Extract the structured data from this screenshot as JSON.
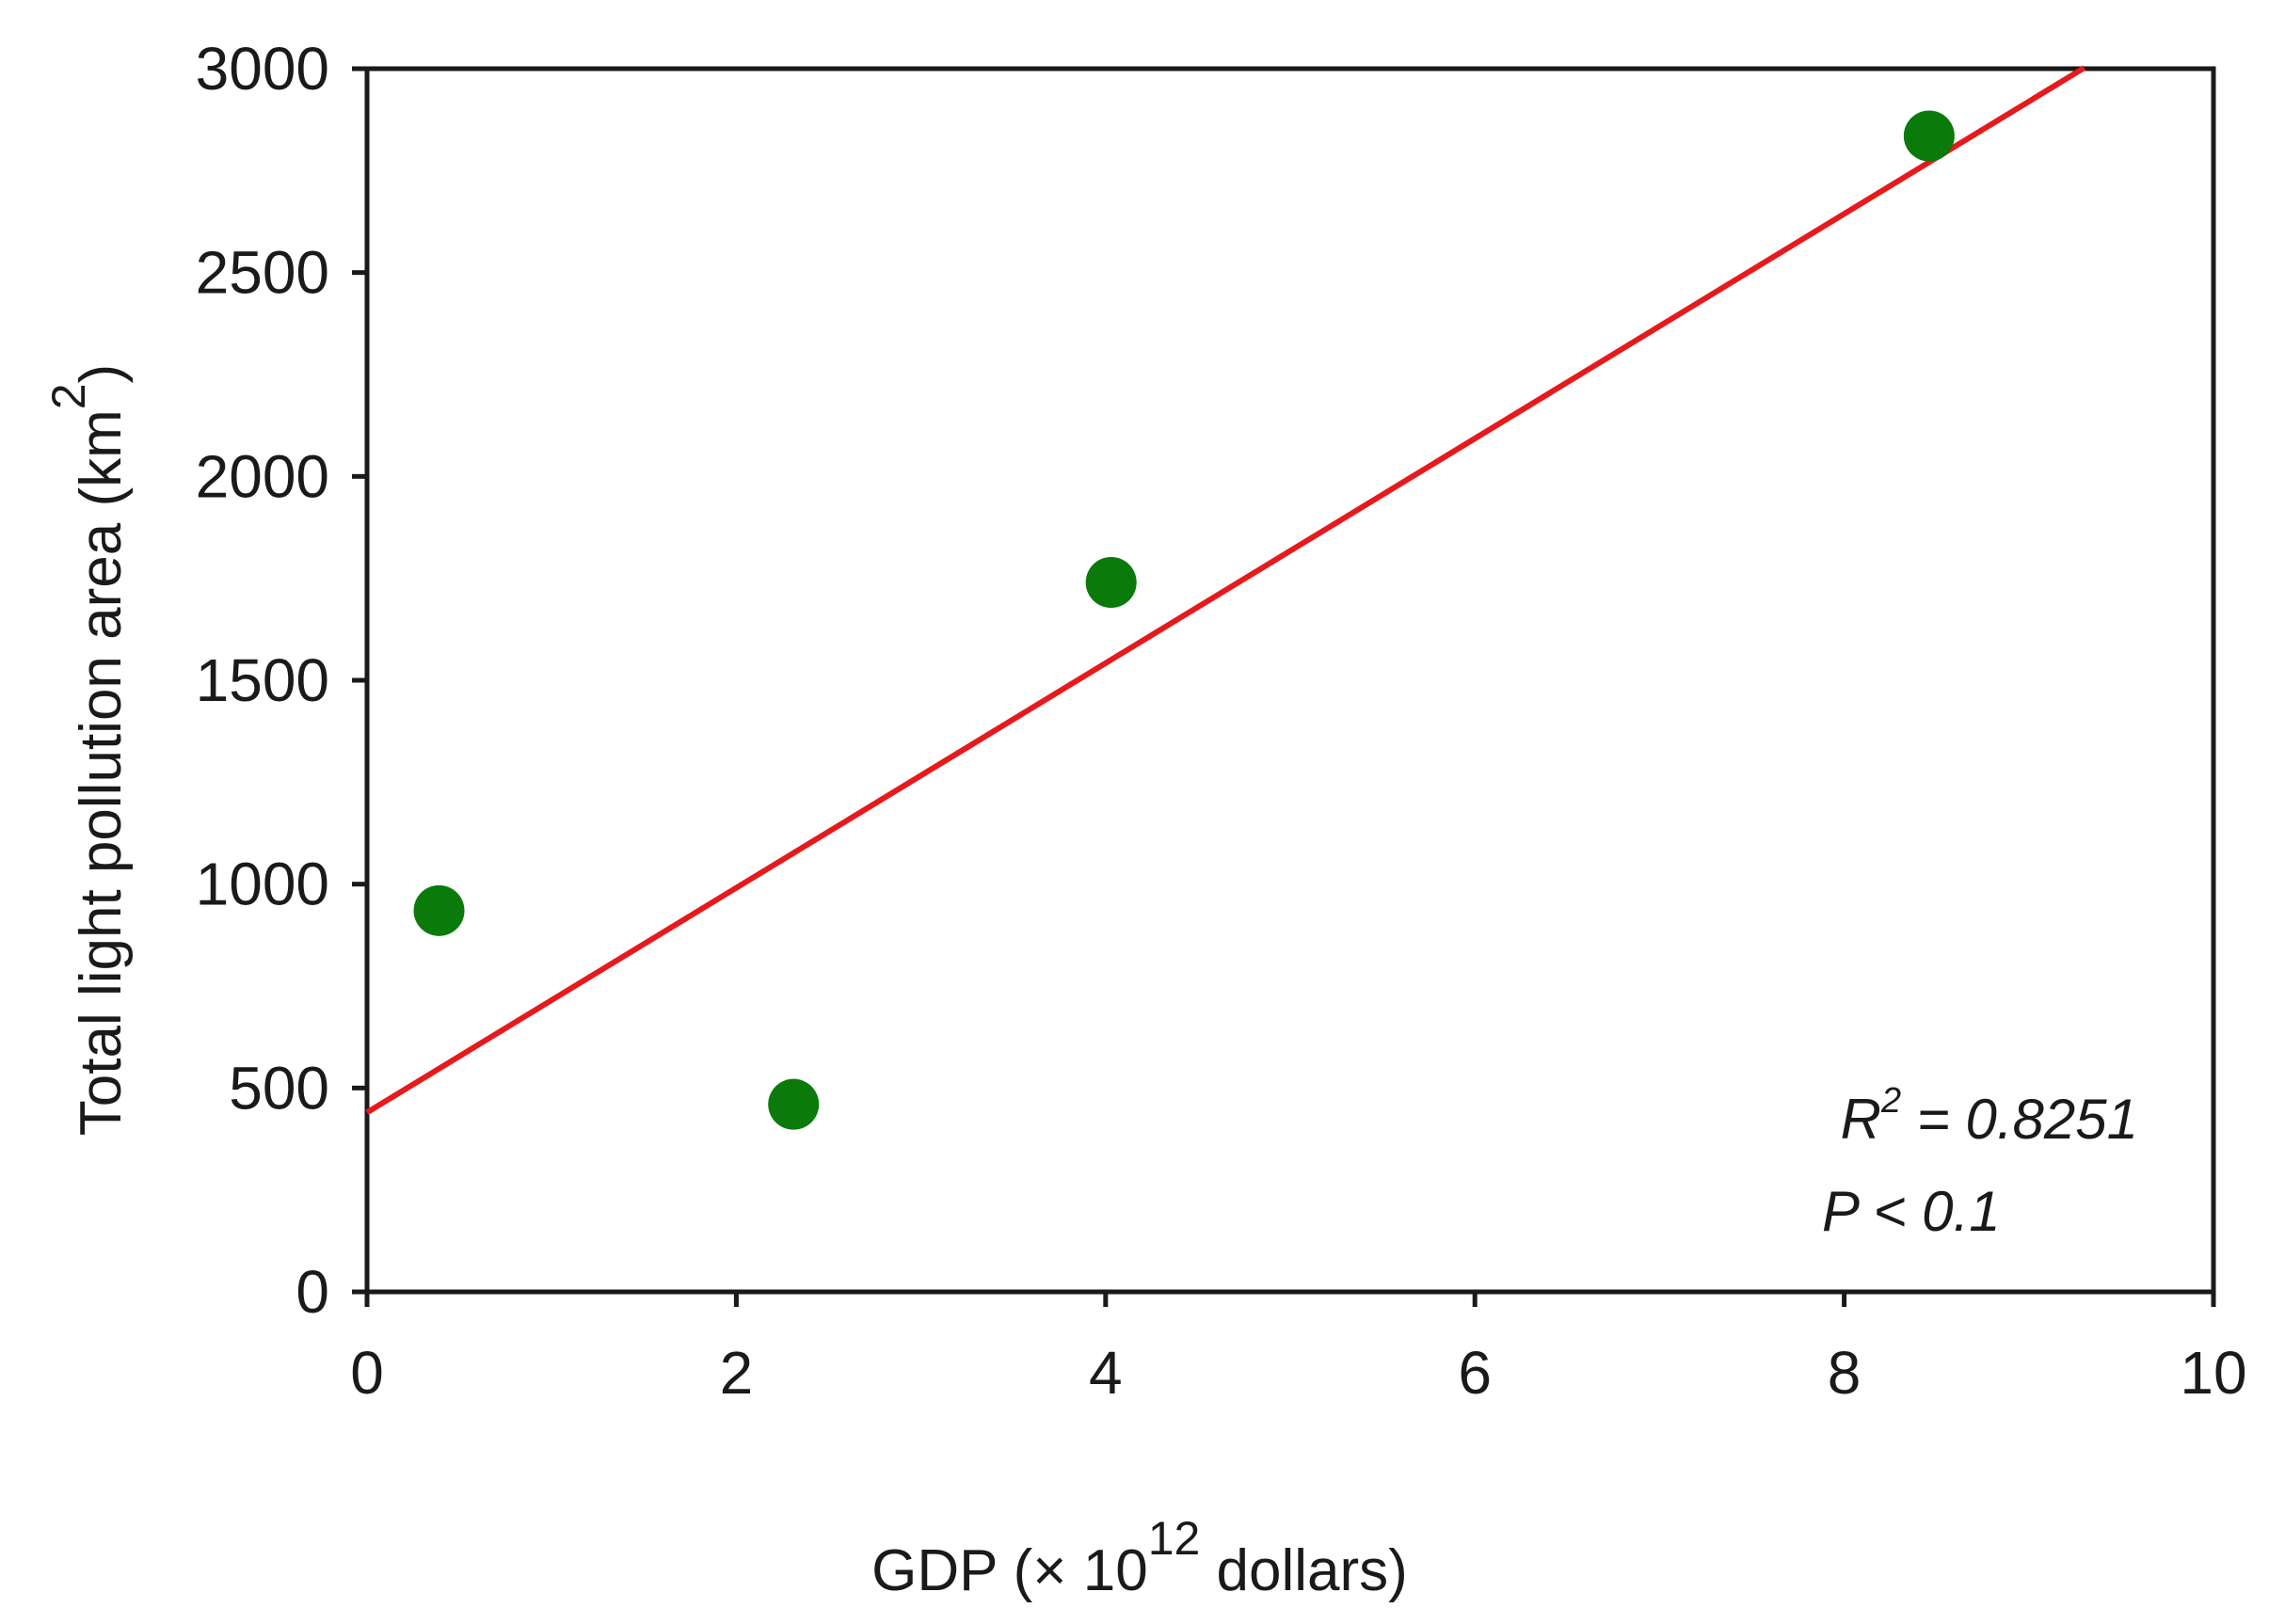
{
  "chart_data": {
    "type": "scatter",
    "xlabel": {
      "pre": "GDP (× 10",
      "sup": "12",
      "post": " dollars)"
    },
    "ylabel": {
      "pre": "Total light pollution area (km",
      "sup": "2",
      "post": ")"
    },
    "xlim": [
      0,
      10
    ],
    "ylim": [
      0,
      3000
    ],
    "x_ticks": [
      0,
      2,
      4,
      6,
      8,
      10
    ],
    "y_ticks": [
      0,
      500,
      1000,
      1500,
      2000,
      2500,
      3000
    ],
    "grid": false,
    "points": [
      {
        "x": 0.39,
        "y": 935
      },
      {
        "x": 2.31,
        "y": 460
      },
      {
        "x": 4.03,
        "y": 1740
      },
      {
        "x": 8.46,
        "y": 2835
      }
    ],
    "fit_line": {
      "slope": 275.5,
      "intercept": 440,
      "x_start": 0,
      "x_end": 9.3
    },
    "annotations": {
      "r2_symbol": "R",
      "r2_sup": "2",
      "r2_value": " = 0.8251",
      "p_text": "P < 0.1"
    },
    "colors": {
      "points": "#0a7a0a",
      "fit_line": "#e8191c",
      "axes": "#1a1a1a"
    }
  }
}
